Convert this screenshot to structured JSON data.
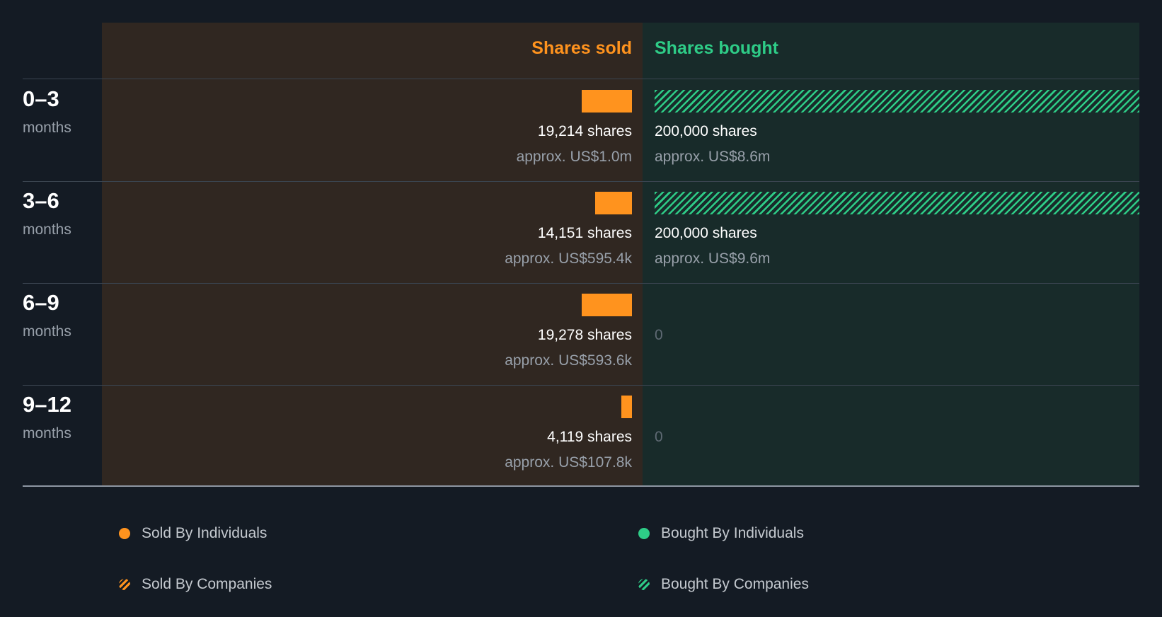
{
  "colors": {
    "sold": "#ff931e",
    "bought": "#2ecc87",
    "background": "#141b24",
    "sold_panel": "#302721",
    "bought_panel": "#182b2a"
  },
  "chart_data": {
    "type": "bar",
    "orientation": "horizontal-diverging",
    "columns": {
      "sold": "Shares sold",
      "bought": "Shares bought"
    },
    "categories": [
      {
        "range": "0–3",
        "unit": "months"
      },
      {
        "range": "3–6",
        "unit": "months"
      },
      {
        "range": "6–9",
        "unit": "months"
      },
      {
        "range": "9–12",
        "unit": "months"
      }
    ],
    "series": [
      {
        "name": "Shares sold",
        "kind": "individuals",
        "values": [
          19214,
          14151,
          19278,
          4119
        ],
        "shares_labels": [
          "19,214 shares",
          "14,151 shares",
          "19,278 shares",
          "4,119 shares"
        ],
        "value_labels": [
          "approx. US$1.0m",
          "approx. US$595.4k",
          "approx. US$593.6k",
          "approx. US$107.8k"
        ]
      },
      {
        "name": "Shares bought",
        "kind": "companies",
        "values": [
          200000,
          200000,
          0,
          0
        ],
        "shares_labels": [
          "200,000 shares",
          "200,000 shares",
          "0",
          "0"
        ],
        "value_labels": [
          "approx. US$8.6m",
          "approx. US$9.6m",
          "",
          ""
        ]
      }
    ],
    "legend": [
      "Sold By Individuals",
      "Bought By Individuals",
      "Sold By Companies",
      "Bought By Companies"
    ]
  }
}
